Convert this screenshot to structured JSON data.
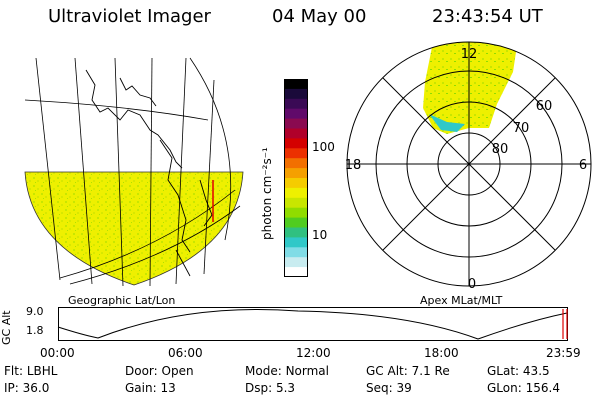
{
  "header": {
    "instrument": "Ultraviolet Imager",
    "date": "04 May 00",
    "time": "23:43:54 UT"
  },
  "colorbar": {
    "unit_label": "photon cm⁻²s⁻¹",
    "ticks": [
      "100",
      "10"
    ],
    "colors": [
      "#000000",
      "#1a0a3a",
      "#3a0a55",
      "#600a6a",
      "#8a0a50",
      "#b0002a",
      "#d40000",
      "#ec3000",
      "#f27000",
      "#f5a000",
      "#f5cc00",
      "#eef000",
      "#c8e600",
      "#90dc00",
      "#50cc20",
      "#30c080",
      "#30c8c8",
      "#80dce6",
      "#c8ecf0",
      "#ffffff"
    ]
  },
  "panels": {
    "left_label": "Geographic Lat/Lon",
    "right_label": "Apex MLat/MLT"
  },
  "polar": {
    "mlt_labels": {
      "top": "12",
      "left": "18",
      "right": "6",
      "bottom": "0"
    },
    "lat_labels": [
      "60",
      "70",
      "80"
    ]
  },
  "altitude_plot": {
    "axis_title": "GC Alt",
    "y_ticks": [
      "9.0",
      "1.8"
    ],
    "x_ticks": [
      "00:00",
      "06:00",
      "12:00",
      "18:00",
      "23:59"
    ],
    "marker_color": "#e00000"
  },
  "status": {
    "row1": [
      {
        "k": "Flt:",
        "v": "LBHL"
      },
      {
        "k": "Door:",
        "v": "Open"
      },
      {
        "k": "Mode:",
        "v": "Normal"
      },
      {
        "k": "GC Alt:",
        "v": "7.1 Re"
      },
      {
        "k": "GLat:",
        "v": "43.5"
      }
    ],
    "row2": [
      {
        "k": "IP:",
        "v": "36.0"
      },
      {
        "k": "Gain:",
        "v": "13"
      },
      {
        "k": "Dsp:",
        "v": "5.3"
      },
      {
        "k": "Seq:",
        "v": "39"
      },
      {
        "k": "GLon:",
        "v": "156.4"
      }
    ]
  }
}
